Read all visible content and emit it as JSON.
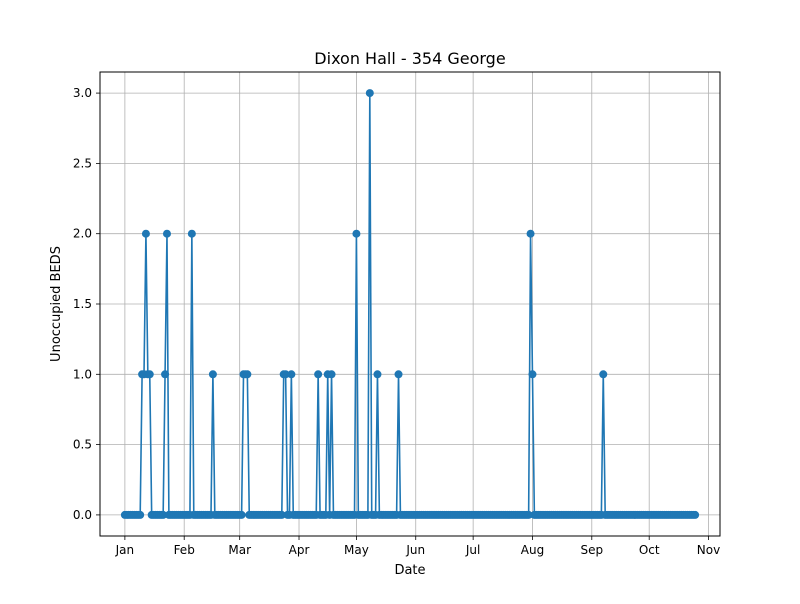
{
  "chart_data": {
    "type": "line",
    "title": "Dixon Hall - 354 George",
    "xlabel": "Date",
    "ylabel": "Unoccupied BEDS",
    "x_ticks": [
      "Jan",
      "Feb",
      "Mar",
      "Apr",
      "May",
      "Jun",
      "Jul",
      "Aug",
      "Sep",
      "Oct",
      "Nov"
    ],
    "x_tick_dates": [
      "2024-01-01",
      "2024-02-01",
      "2024-03-01",
      "2024-04-01",
      "2024-05-01",
      "2024-06-01",
      "2024-07-01",
      "2024-08-01",
      "2024-09-01",
      "2024-10-01",
      "2024-11-01"
    ],
    "y_ticks": [
      "0.0",
      "0.5",
      "1.0",
      "1.5",
      "2.0",
      "2.5",
      "3.0"
    ],
    "xlim": [
      "2023-12-19",
      "2024-11-07"
    ],
    "ylim": [
      -0.15,
      3.15
    ],
    "grid": true,
    "marker": "circle",
    "color": "#1f77b4",
    "series_start": "2024-01-01",
    "series_end": "2024-10-25",
    "default_value": 0,
    "nonzero_points": [
      {
        "x": "2024-01-10",
        "y": 1
      },
      {
        "x": "2024-01-11",
        "y": 1
      },
      {
        "x": "2024-01-12",
        "y": 2
      },
      {
        "x": "2024-01-13",
        "y": 1
      },
      {
        "x": "2024-01-14",
        "y": 1
      },
      {
        "x": "2024-01-22",
        "y": 1
      },
      {
        "x": "2024-01-23",
        "y": 2
      },
      {
        "x": "2024-02-05",
        "y": 2
      },
      {
        "x": "2024-02-16",
        "y": 1
      },
      {
        "x": "2024-03-03",
        "y": 1
      },
      {
        "x": "2024-03-04",
        "y": 1
      },
      {
        "x": "2024-03-05",
        "y": 1
      },
      {
        "x": "2024-03-24",
        "y": 1
      },
      {
        "x": "2024-03-25",
        "y": 1
      },
      {
        "x": "2024-03-28",
        "y": 1
      },
      {
        "x": "2024-04-11",
        "y": 1
      },
      {
        "x": "2024-04-16",
        "y": 1
      },
      {
        "x": "2024-04-18",
        "y": 1
      },
      {
        "x": "2024-05-01",
        "y": 2
      },
      {
        "x": "2024-05-08",
        "y": 3
      },
      {
        "x": "2024-05-12",
        "y": 1
      },
      {
        "x": "2024-05-23",
        "y": 1
      },
      {
        "x": "2024-07-31",
        "y": 2
      },
      {
        "x": "2024-08-01",
        "y": 1
      },
      {
        "x": "2024-09-07",
        "y": 1
      }
    ]
  }
}
